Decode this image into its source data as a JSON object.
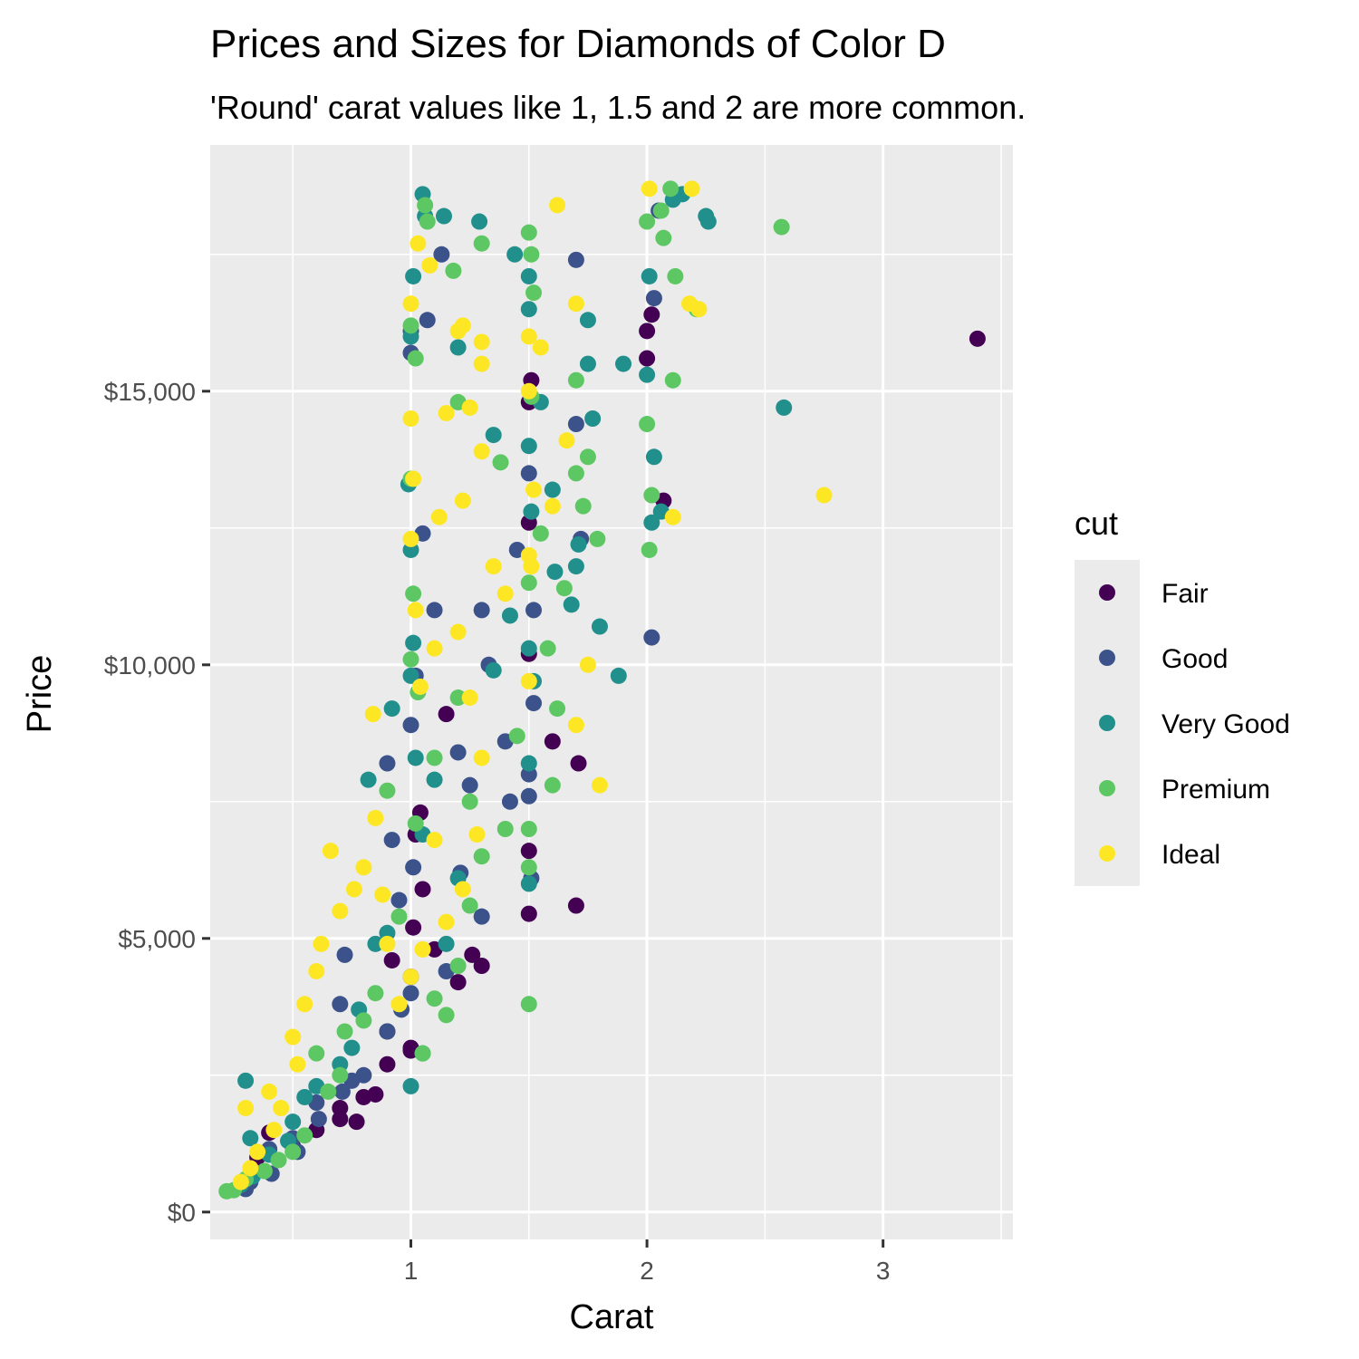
{
  "chart_data": {
    "type": "scatter",
    "title": "Prices and Sizes for Diamonds of Color D",
    "subtitle": "'Round' carat values like 1, 1.5 and 2 are more common.",
    "xlabel": "Carat",
    "ylabel": "Price",
    "xlim": [
      0.15,
      3.55
    ],
    "ylim": [
      -500,
      19500
    ],
    "x_ticks": [
      1,
      2,
      3
    ],
    "x_tick_labels": [
      "1",
      "2",
      "3"
    ],
    "y_ticks": [
      0,
      5000,
      10000,
      15000
    ],
    "y_tick_labels": [
      "$0",
      "$5,000",
      "$10,000",
      "$15,000"
    ],
    "grid": true,
    "legend": {
      "title": "cut",
      "position": "right",
      "entries": [
        "Fair",
        "Good",
        "Very Good",
        "Premium",
        "Ideal"
      ]
    },
    "colors": {
      "Fair": "#440154",
      "Good": "#3b528b",
      "Very Good": "#21908c",
      "Premium": "#5dc863",
      "Ideal": "#fde725",
      "panel_background": "#ebebeb",
      "grid": "#ffffff"
    },
    "series": [
      {
        "name": "Fair",
        "points": [
          [
            3.4,
            15960
          ],
          [
            2.07,
            13000
          ],
          [
            2.0,
            16100
          ],
          [
            2.0,
            15600
          ],
          [
            2.02,
            16400
          ],
          [
            1.7,
            5600
          ],
          [
            1.71,
            8200
          ],
          [
            1.5,
            5450
          ],
          [
            1.5,
            6600
          ],
          [
            1.5,
            12600
          ],
          [
            1.51,
            15200
          ],
          [
            1.6,
            8600
          ],
          [
            1.5,
            14800
          ],
          [
            1.5,
            10200
          ],
          [
            1.0,
            3000
          ],
          [
            1.0,
            2950
          ],
          [
            1.0,
            4300
          ],
          [
            1.01,
            5200
          ],
          [
            1.02,
            6900
          ],
          [
            1.05,
            5900
          ],
          [
            1.1,
            4800
          ],
          [
            1.2,
            4200
          ],
          [
            1.26,
            4700
          ],
          [
            0.9,
            2700
          ],
          [
            0.9,
            3300
          ],
          [
            0.85,
            2150
          ],
          [
            0.8,
            2100
          ],
          [
            0.77,
            1650
          ],
          [
            0.7,
            1900
          ],
          [
            0.7,
            1700
          ],
          [
            0.6,
            1500
          ],
          [
            0.5,
            1200
          ],
          [
            0.4,
            1450
          ],
          [
            0.35,
            1000
          ],
          [
            0.92,
            4600
          ],
          [
            1.04,
            7300
          ],
          [
            1.15,
            9100
          ],
          [
            1.3,
            4500
          ]
        ]
      },
      {
        "name": "Good",
        "points": [
          [
            2.02,
            10500
          ],
          [
            2.03,
            16700
          ],
          [
            2.05,
            18300
          ],
          [
            1.7,
            17400
          ],
          [
            1.7,
            14400
          ],
          [
            1.72,
            12300
          ],
          [
            1.5,
            8000
          ],
          [
            1.5,
            7600
          ],
          [
            1.51,
            6100
          ],
          [
            1.52,
            11000
          ],
          [
            1.5,
            13500
          ],
          [
            1.52,
            9300
          ],
          [
            1.4,
            8600
          ],
          [
            1.42,
            7500
          ],
          [
            1.33,
            10000
          ],
          [
            1.45,
            12100
          ],
          [
            1.13,
            17500
          ],
          [
            1.07,
            16300
          ],
          [
            1.0,
            15700
          ],
          [
            1.0,
            16100
          ],
          [
            1.0,
            8900
          ],
          [
            1.01,
            6300
          ],
          [
            1.02,
            9800
          ],
          [
            1.05,
            12400
          ],
          [
            1.1,
            11000
          ],
          [
            1.2,
            8400
          ],
          [
            1.25,
            7800
          ],
          [
            1.3,
            11000
          ],
          [
            1.3,
            5400
          ],
          [
            1.21,
            6200
          ],
          [
            1.15,
            4400
          ],
          [
            1.0,
            4000
          ],
          [
            0.9,
            8200
          ],
          [
            0.92,
            6800
          ],
          [
            0.95,
            5700
          ],
          [
            0.96,
            3700
          ],
          [
            0.9,
            3300
          ],
          [
            0.8,
            2500
          ],
          [
            0.75,
            2400
          ],
          [
            0.7,
            3800
          ],
          [
            0.72,
            4700
          ],
          [
            0.71,
            2200
          ],
          [
            0.6,
            2000
          ],
          [
            0.61,
            1700
          ],
          [
            0.5,
            1350
          ],
          [
            0.52,
            1100
          ],
          [
            0.4,
            1150
          ],
          [
            0.41,
            700
          ],
          [
            0.32,
            550
          ],
          [
            0.3,
            420
          ]
        ]
      },
      {
        "name": "Very Good",
        "points": [
          [
            2.25,
            18200
          ],
          [
            2.26,
            18100
          ],
          [
            2.58,
            14700
          ],
          [
            2.11,
            18500
          ],
          [
            2.15,
            18600
          ],
          [
            2.03,
            13800
          ],
          [
            2.01,
            17100
          ],
          [
            2.0,
            15300
          ],
          [
            2.06,
            12800
          ],
          [
            2.02,
            12600
          ],
          [
            1.9,
            15500
          ],
          [
            1.88,
            9800
          ],
          [
            1.8,
            10700
          ],
          [
            1.77,
            14500
          ],
          [
            1.75,
            15500
          ],
          [
            1.75,
            16300
          ],
          [
            1.71,
            12200
          ],
          [
            1.7,
            11800
          ],
          [
            1.68,
            11100
          ],
          [
            1.6,
            13200
          ],
          [
            1.61,
            11700
          ],
          [
            1.55,
            14800
          ],
          [
            1.5,
            14000
          ],
          [
            1.5,
            16500
          ],
          [
            1.5,
            17100
          ],
          [
            1.51,
            12800
          ],
          [
            1.5,
            10300
          ],
          [
            1.52,
            9700
          ],
          [
            1.5,
            8200
          ],
          [
            1.5,
            6000
          ],
          [
            1.44,
            17500
          ],
          [
            1.42,
            10900
          ],
          [
            1.35,
            9900
          ],
          [
            1.35,
            14200
          ],
          [
            1.29,
            18100
          ],
          [
            1.2,
            15800
          ],
          [
            1.14,
            18200
          ],
          [
            1.05,
            18600
          ],
          [
            1.06,
            18200
          ],
          [
            1.01,
            17100
          ],
          [
            1.0,
            16000
          ],
          [
            0.99,
            13300
          ],
          [
            1.0,
            12100
          ],
          [
            1.01,
            10400
          ],
          [
            1.0,
            9800
          ],
          [
            1.02,
            8300
          ],
          [
            1.05,
            6900
          ],
          [
            1.1,
            7900
          ],
          [
            1.2,
            6100
          ],
          [
            1.15,
            4900
          ],
          [
            1.05,
            2900
          ],
          [
            1.0,
            2300
          ],
          [
            0.9,
            5100
          ],
          [
            0.92,
            9200
          ],
          [
            0.82,
            7900
          ],
          [
            0.85,
            4900
          ],
          [
            0.78,
            3700
          ],
          [
            0.75,
            3000
          ],
          [
            0.7,
            2700
          ],
          [
            0.6,
            2300
          ],
          [
            0.55,
            2100
          ],
          [
            0.5,
            1650
          ],
          [
            0.48,
            1300
          ],
          [
            0.4,
            1050
          ],
          [
            0.33,
            650
          ],
          [
            0.28,
            500
          ],
          [
            0.3,
            2400
          ],
          [
            0.32,
            1350
          ]
        ]
      },
      {
        "name": "Premium",
        "points": [
          [
            2.57,
            18000
          ],
          [
            2.21,
            16500
          ],
          [
            2.12,
            17100
          ],
          [
            2.07,
            17800
          ],
          [
            2.11,
            15200
          ],
          [
            2.0,
            14400
          ],
          [
            2.01,
            12100
          ],
          [
            2.02,
            13100
          ],
          [
            2.0,
            18100
          ],
          [
            2.06,
            18300
          ],
          [
            2.1,
            18700
          ],
          [
            1.79,
            12300
          ],
          [
            1.75,
            13800
          ],
          [
            1.73,
            12900
          ],
          [
            1.7,
            15200
          ],
          [
            1.7,
            13500
          ],
          [
            1.65,
            11400
          ],
          [
            1.62,
            9200
          ],
          [
            1.6,
            7800
          ],
          [
            1.58,
            10300
          ],
          [
            1.55,
            12400
          ],
          [
            1.51,
            14900
          ],
          [
            1.51,
            17500
          ],
          [
            1.5,
            17900
          ],
          [
            1.52,
            16800
          ],
          [
            1.5,
            11500
          ],
          [
            1.5,
            7000
          ],
          [
            1.5,
            6300
          ],
          [
            1.5,
            3800
          ],
          [
            1.45,
            8700
          ],
          [
            1.4,
            7000
          ],
          [
            1.38,
            13700
          ],
          [
            1.3,
            17700
          ],
          [
            1.2,
            14800
          ],
          [
            1.18,
            17200
          ],
          [
            1.07,
            18100
          ],
          [
            1.06,
            18400
          ],
          [
            1.0,
            16200
          ],
          [
            1.02,
            15600
          ],
          [
            1.0,
            13400
          ],
          [
            1.01,
            11300
          ],
          [
            1.0,
            10100
          ],
          [
            1.03,
            9500
          ],
          [
            1.02,
            7100
          ],
          [
            1.1,
            8300
          ],
          [
            1.2,
            9400
          ],
          [
            1.25,
            7500
          ],
          [
            1.3,
            6500
          ],
          [
            1.25,
            5600
          ],
          [
            1.2,
            4500
          ],
          [
            1.1,
            3900
          ],
          [
            1.15,
            3600
          ],
          [
            1.05,
            2900
          ],
          [
            0.95,
            5400
          ],
          [
            0.9,
            7700
          ],
          [
            0.85,
            4000
          ],
          [
            0.8,
            3500
          ],
          [
            0.72,
            3300
          ],
          [
            0.7,
            2500
          ],
          [
            0.65,
            2200
          ],
          [
            0.6,
            2900
          ],
          [
            0.55,
            1400
          ],
          [
            0.5,
            1100
          ],
          [
            0.44,
            950
          ],
          [
            0.38,
            750
          ],
          [
            0.3,
            600
          ],
          [
            0.25,
            400
          ],
          [
            0.22,
            380
          ]
        ]
      },
      {
        "name": "Ideal",
        "points": [
          [
            2.75,
            13100
          ],
          [
            2.19,
            18700
          ],
          [
            2.22,
            16500
          ],
          [
            2.18,
            16600
          ],
          [
            2.11,
            12700
          ],
          [
            2.01,
            18700
          ],
          [
            1.8,
            7800
          ],
          [
            1.75,
            10000
          ],
          [
            1.7,
            8900
          ],
          [
            1.7,
            16600
          ],
          [
            1.66,
            14100
          ],
          [
            1.62,
            18400
          ],
          [
            1.6,
            12900
          ],
          [
            1.55,
            15800
          ],
          [
            1.5,
            15000
          ],
          [
            1.5,
            16000
          ],
          [
            1.52,
            13200
          ],
          [
            1.51,
            11800
          ],
          [
            1.5,
            9700
          ],
          [
            1.5,
            12000
          ],
          [
            1.4,
            11300
          ],
          [
            1.35,
            11800
          ],
          [
            1.3,
            13900
          ],
          [
            1.3,
            15900
          ],
          [
            1.3,
            15500
          ],
          [
            1.25,
            14700
          ],
          [
            1.22,
            16200
          ],
          [
            1.2,
            16100
          ],
          [
            1.15,
            14600
          ],
          [
            1.08,
            17300
          ],
          [
            1.03,
            17700
          ],
          [
            1.0,
            16600
          ],
          [
            1.0,
            14500
          ],
          [
            1.01,
            13400
          ],
          [
            1.0,
            12300
          ],
          [
            1.02,
            11000
          ],
          [
            1.04,
            9600
          ],
          [
            1.1,
            10300
          ],
          [
            1.12,
            12700
          ],
          [
            1.22,
            13000
          ],
          [
            1.2,
            10600
          ],
          [
            1.25,
            9400
          ],
          [
            1.3,
            8300
          ],
          [
            1.28,
            6900
          ],
          [
            1.22,
            5900
          ],
          [
            1.15,
            5300
          ],
          [
            1.1,
            6800
          ],
          [
            1.05,
            4800
          ],
          [
            1.0,
            4300
          ],
          [
            0.95,
            3800
          ],
          [
            0.9,
            4900
          ],
          [
            0.88,
            5800
          ],
          [
            0.85,
            7200
          ],
          [
            0.84,
            9100
          ],
          [
            0.8,
            6300
          ],
          [
            0.76,
            5900
          ],
          [
            0.7,
            5500
          ],
          [
            0.66,
            6600
          ],
          [
            0.62,
            4900
          ],
          [
            0.6,
            4400
          ],
          [
            0.55,
            3800
          ],
          [
            0.52,
            2700
          ],
          [
            0.5,
            3200
          ],
          [
            0.45,
            1900
          ],
          [
            0.42,
            1500
          ],
          [
            0.4,
            2200
          ],
          [
            0.35,
            1100
          ],
          [
            0.32,
            800
          ],
          [
            0.28,
            550
          ],
          [
            0.3,
            1900
          ]
        ]
      }
    ]
  }
}
